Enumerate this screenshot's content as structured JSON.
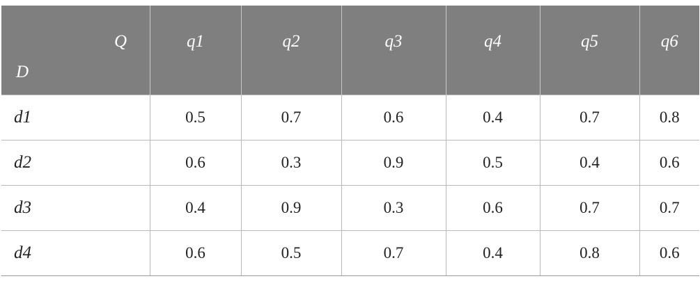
{
  "table": {
    "corner_q": "Q",
    "corner_d": "D",
    "columns": [
      "q1",
      "q2",
      "q3",
      "q4",
      "q5",
      "q6"
    ],
    "rows": [
      {
        "label": "d1",
        "values": [
          "0.5",
          "0.7",
          "0.6",
          "0.4",
          "0.7",
          "0.8"
        ]
      },
      {
        "label": "d2",
        "values": [
          "0.6",
          "0.3",
          "0.9",
          "0.5",
          "0.4",
          "0.6"
        ]
      },
      {
        "label": "d3",
        "values": [
          "0.4",
          "0.9",
          "0.3",
          "0.6",
          "0.7",
          "0.7"
        ]
      },
      {
        "label": "d4",
        "values": [
          "0.6",
          "0.5",
          "0.7",
          "0.4",
          "0.8",
          "0.6"
        ]
      }
    ],
    "header_bg": "#7f7f7f"
  }
}
